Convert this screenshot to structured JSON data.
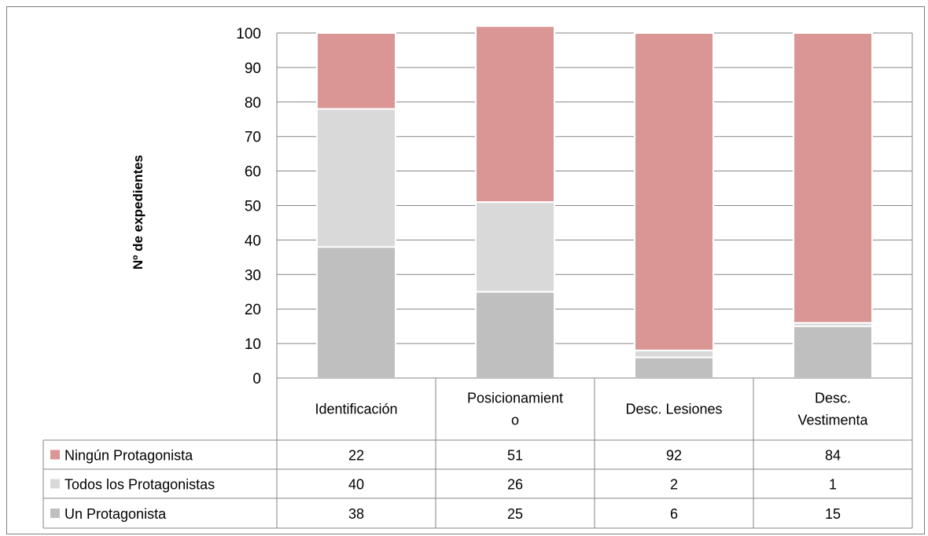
{
  "chart_data": {
    "type": "bar",
    "stacked": true,
    "ylabel": "Nº de expedientes",
    "ylim": [
      0,
      100
    ],
    "yticks": [
      "0",
      "10",
      "20",
      "30",
      "40",
      "50",
      "60",
      "70",
      "80",
      "90",
      "100"
    ],
    "categories": [
      {
        "lines": [
          "Identificación"
        ]
      },
      {
        "lines": [
          "Posicionamient",
          "o"
        ]
      },
      {
        "lines": [
          "Desc. Lesiones"
        ]
      },
      {
        "lines": [
          "Desc.",
          "Vestimenta"
        ]
      }
    ],
    "series": [
      {
        "name": "Un Protagonista",
        "color": "#bfbfbf",
        "values": [
          38,
          25,
          6,
          15
        ]
      },
      {
        "name": "Todos los Protagonistas",
        "color": "#d9d9d9",
        "values": [
          40,
          26,
          2,
          1
        ]
      },
      {
        "name": "Ningún Protagonista",
        "color": "#d99694",
        "values": [
          22,
          51,
          92,
          84
        ]
      }
    ],
    "table_order": [
      2,
      1,
      0
    ],
    "grid": true,
    "legend": "data-table"
  }
}
